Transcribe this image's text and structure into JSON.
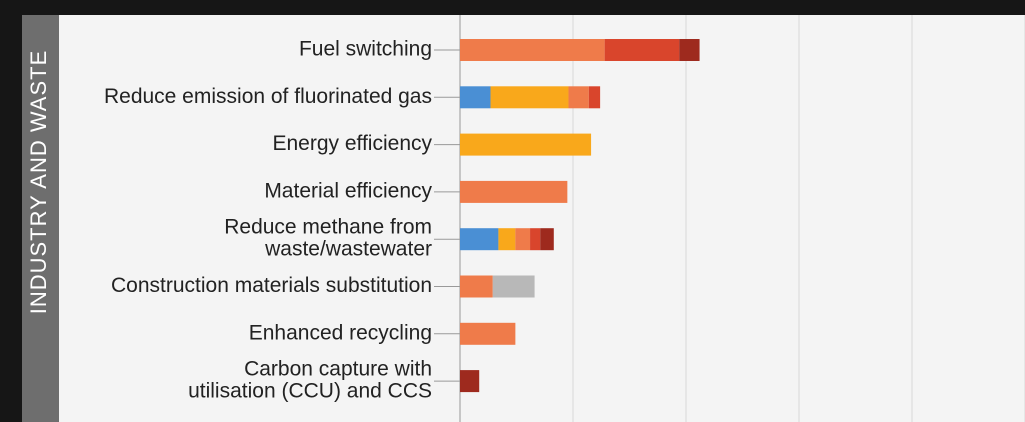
{
  "chart_data": {
    "type": "stacked-bar-horizontal",
    "title": "INDUSTRY AND WASTE",
    "categories": [
      [
        "Fuel switching"
      ],
      [
        "Reduce emission of fluorinated gas"
      ],
      [
        "Energy efficiency"
      ],
      [
        "Material efficiency"
      ],
      [
        "Reduce methane from",
        "waste/wastewater"
      ],
      [
        "Construction materials substitution"
      ],
      [
        "Enhanced recycling"
      ],
      [
        "Carbon capture with",
        "utilisation (CCU) and CCS"
      ]
    ],
    "series": [
      {
        "color": "#4a8fd4",
        "values": [
          0,
          0.27,
          0,
          0,
          0.34,
          0,
          0,
          0
        ]
      },
      {
        "color": "#f9a81b",
        "values": [
          0,
          0.69,
          1.16,
          0,
          0.15,
          0,
          0,
          0
        ]
      },
      {
        "color": "#ef7b4a",
        "values": [
          1.28,
          0.18,
          0,
          0.95,
          0.13,
          0.29,
          0.49,
          0
        ]
      },
      {
        "color": "#d9452c",
        "values": [
          0.66,
          0.1,
          0,
          0,
          0.09,
          0,
          0,
          0
        ]
      },
      {
        "color": "#9e2a1e",
        "values": [
          0.18,
          0,
          0,
          0,
          0.12,
          0,
          0,
          0.17
        ]
      },
      {
        "color": "#b8b8b8",
        "values": [
          0,
          0,
          0,
          0,
          0,
          0.37,
          0,
          0
        ]
      }
    ],
    "xlim": [
      0,
      5
    ],
    "xticks": [
      0,
      1,
      2,
      3,
      4,
      5
    ],
    "grid": true
  }
}
